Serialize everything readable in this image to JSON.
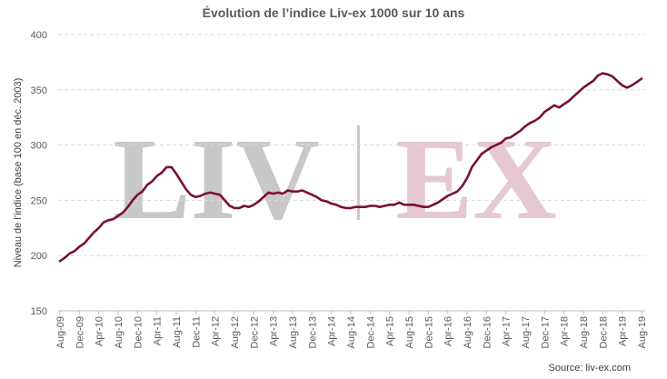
{
  "chart_data": {
    "type": "line",
    "title": "Évolution de l’indice Liv-ex 1000 sur 10 ans",
    "ylabel": "Niveau de l’indice (base 100 en déc. 2003)",
    "xlabel": "",
    "ylim": [
      150,
      400
    ],
    "yticks": [
      150,
      200,
      250,
      300,
      350,
      400
    ],
    "grid": "horizontal dashed",
    "source": "Source: liv-ex.com",
    "watermark": {
      "left": "LIV",
      "right": "EX",
      "left_color": "#c8c8c8",
      "right_color": "#e6c8d0"
    },
    "line_color": "#7a0f35",
    "xtick_labels": [
      "Aug-09",
      "Dec-09",
      "Apr-10",
      "Aug-10",
      "Dec-10",
      "Apr-11",
      "Aug-11",
      "Dec-11",
      "Apr-12",
      "Aug-12",
      "Dec-12",
      "Apr-13",
      "Aug-13",
      "Dec-13",
      "Apr-14",
      "Aug-14",
      "Dec-14",
      "Apr-15",
      "Aug-15",
      "Dec-15",
      "Apr-16",
      "Aug-16",
      "Dec-16",
      "Apr-17",
      "Aug-17",
      "Dec-17",
      "Apr-18",
      "Aug-18",
      "Dec-18",
      "Apr-19",
      "Aug-19"
    ],
    "x": [
      "Aug-09",
      "Sep-09",
      "Oct-09",
      "Nov-09",
      "Dec-09",
      "Jan-10",
      "Feb-10",
      "Mar-10",
      "Apr-10",
      "May-10",
      "Jun-10",
      "Jul-10",
      "Aug-10",
      "Sep-10",
      "Oct-10",
      "Nov-10",
      "Dec-10",
      "Jan-11",
      "Feb-11",
      "Mar-11",
      "Apr-11",
      "May-11",
      "Jun-11",
      "Jul-11",
      "Aug-11",
      "Sep-11",
      "Oct-11",
      "Nov-11",
      "Dec-11",
      "Jan-12",
      "Feb-12",
      "Mar-12",
      "Apr-12",
      "May-12",
      "Jun-12",
      "Jul-12",
      "Aug-12",
      "Sep-12",
      "Oct-12",
      "Nov-12",
      "Dec-12",
      "Jan-13",
      "Feb-13",
      "Mar-13",
      "Apr-13",
      "May-13",
      "Jun-13",
      "Jul-13",
      "Aug-13",
      "Sep-13",
      "Oct-13",
      "Nov-13",
      "Dec-13",
      "Jan-14",
      "Feb-14",
      "Mar-14",
      "Apr-14",
      "May-14",
      "Jun-14",
      "Jul-14",
      "Aug-14",
      "Sep-14",
      "Oct-14",
      "Nov-14",
      "Dec-14",
      "Jan-15",
      "Feb-15",
      "Mar-15",
      "Apr-15",
      "May-15",
      "Jun-15",
      "Jul-15",
      "Aug-15",
      "Sep-15",
      "Oct-15",
      "Nov-15",
      "Dec-15",
      "Jan-16",
      "Feb-16",
      "Mar-16",
      "Apr-16",
      "May-16",
      "Jun-16",
      "Jul-16",
      "Aug-16",
      "Sep-16",
      "Oct-16",
      "Nov-16",
      "Dec-16",
      "Jan-17",
      "Feb-17",
      "Mar-17",
      "Apr-17",
      "May-17",
      "Jun-17",
      "Jul-17",
      "Aug-17",
      "Sep-17",
      "Oct-17",
      "Nov-17",
      "Dec-17",
      "Jan-18",
      "Feb-18",
      "Mar-18",
      "Apr-18",
      "May-18",
      "Jun-18",
      "Jul-18",
      "Aug-18",
      "Sep-18",
      "Oct-18",
      "Nov-18",
      "Dec-18",
      "Jan-19",
      "Feb-19",
      "Mar-19",
      "Apr-19",
      "May-19",
      "Jun-19",
      "Jul-19",
      "Aug-19"
    ],
    "series": [
      {
        "values": [
          195,
          198,
          202,
          204,
          208,
          211,
          216,
          221,
          225,
          230,
          232,
          233,
          236,
          239,
          244,
          250,
          255,
          258,
          264,
          267,
          272,
          275,
          280,
          280,
          274,
          267,
          260,
          255,
          253,
          254,
          256,
          257,
          256,
          255,
          250,
          245,
          243,
          243,
          245,
          244,
          246,
          249,
          253,
          257,
          256,
          257,
          256,
          259,
          258,
          258,
          259,
          257,
          255,
          253,
          250,
          249,
          247,
          246,
          244,
          243,
          243,
          244,
          244,
          244,
          245,
          245,
          244,
          245,
          246,
          246,
          248,
          246,
          246,
          246,
          245,
          244,
          244,
          246,
          248,
          251,
          254,
          256,
          258,
          263,
          270,
          280,
          286,
          292,
          295,
          298,
          300,
          302,
          306,
          307,
          310,
          313,
          317,
          320,
          322,
          325,
          330,
          333,
          336,
          334,
          337,
          340,
          344,
          348,
          352,
          355,
          358,
          363,
          365,
          364,
          362,
          358,
          354,
          352,
          354,
          357,
          360
        ]
      }
    ]
  }
}
